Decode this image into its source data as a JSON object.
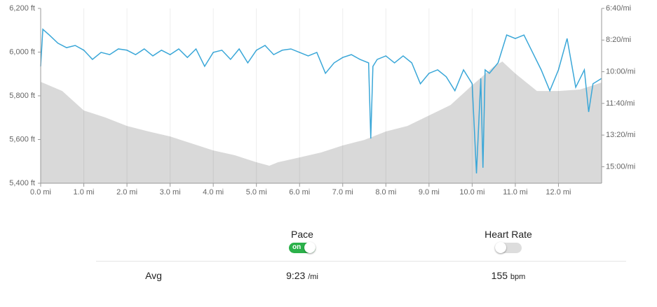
{
  "chart_data": {
    "type": "combo",
    "xlim": [
      0,
      13
    ],
    "xticks": [
      {
        "value": 0,
        "label": "0.0 mi"
      },
      {
        "value": 1,
        "label": "1.0 mi"
      },
      {
        "value": 2,
        "label": "2.0 mi"
      },
      {
        "value": 3,
        "label": "3.0 mi"
      },
      {
        "value": 4,
        "label": "4.0 mi"
      },
      {
        "value": 5,
        "label": "5.0 mi"
      },
      {
        "value": 6,
        "label": "6.0 mi"
      },
      {
        "value": 7,
        "label": "7.0 mi"
      },
      {
        "value": 8,
        "label": "8.0 mi"
      },
      {
        "value": 9,
        "label": "9.0 mi"
      },
      {
        "value": 10,
        "label": "10.0 mi"
      },
      {
        "value": 11,
        "label": "11.0 mi"
      },
      {
        "value": 12,
        "label": "12.0 mi"
      }
    ],
    "ylim": [
      5400,
      6200
    ],
    "yticks": [
      {
        "value": 5400,
        "label": "5,400 ft"
      },
      {
        "value": 5600,
        "label": "5,600 ft"
      },
      {
        "value": 5800,
        "label": "5,800 ft"
      },
      {
        "value": 6000,
        "label": "6,000 ft"
      },
      {
        "value": 6200,
        "label": "6,200 ft"
      }
    ],
    "y2lim": [
      952,
      400
    ],
    "y2ticks": [
      {
        "value": 400,
        "label": "6:40/mi"
      },
      {
        "value": 500,
        "label": "8:20/mi"
      },
      {
        "value": 600,
        "label": "10:00/mi"
      },
      {
        "value": 700,
        "label": "11:40/mi"
      },
      {
        "value": 800,
        "label": "13:20/mi"
      },
      {
        "value": 900,
        "label": "15:00/mi"
      }
    ],
    "grid": true,
    "series": [
      {
        "type": "area",
        "color": "#d9d9d9",
        "x": [
          0,
          0.5,
          1.0,
          1.5,
          2.0,
          2.5,
          3.0,
          3.5,
          4.0,
          4.5,
          5.0,
          5.3,
          5.5,
          6.0,
          6.5,
          7.0,
          7.5,
          8.0,
          8.5,
          9.0,
          9.5,
          10.0,
          10.5,
          10.7,
          11.0,
          11.5,
          12.0,
          12.5,
          13.0
        ],
        "values": [
          5864,
          5822,
          5733,
          5701,
          5662,
          5637,
          5614,
          5582,
          5550,
          5528,
          5496,
          5480,
          5496,
          5518,
          5541,
          5573,
          5598,
          5637,
          5662,
          5710,
          5758,
          5848,
          5934,
          5957,
          5902,
          5822,
          5822,
          5829,
          5861
        ]
      },
      {
        "type": "line",
        "axis": "y2",
        "color": "#3aa7d8",
        "x": [
          0,
          0.05,
          0.2,
          0.4,
          0.6,
          0.8,
          1.0,
          1.2,
          1.4,
          1.6,
          1.8,
          2.0,
          2.2,
          2.4,
          2.6,
          2.8,
          3.0,
          3.2,
          3.4,
          3.6,
          3.8,
          4.0,
          4.2,
          4.4,
          4.6,
          4.8,
          5.0,
          5.2,
          5.4,
          5.6,
          5.8,
          6.0,
          6.2,
          6.4,
          6.6,
          6.8,
          7.0,
          7.2,
          7.4,
          7.6,
          7.65,
          7.7,
          7.8,
          8.0,
          8.2,
          8.4,
          8.6,
          8.8,
          9.0,
          9.2,
          9.4,
          9.6,
          9.8,
          10.0,
          10.1,
          10.2,
          10.25,
          10.3,
          10.4,
          10.6,
          10.8,
          11.0,
          11.2,
          11.4,
          11.6,
          11.8,
          12.0,
          12.2,
          12.4,
          12.6,
          12.7,
          12.8,
          13.0
        ],
        "values": [
          583,
          466,
          484,
          510,
          524,
          517,
          532,
          561,
          539,
          546,
          528,
          532,
          546,
          528,
          550,
          532,
          546,
          528,
          555,
          528,
          583,
          539,
          532,
          561,
          528,
          572,
          532,
          517,
          546,
          532,
          528,
          539,
          550,
          539,
          605,
          572,
          555,
          546,
          561,
          572,
          811,
          583,
          561,
          550,
          572,
          550,
          572,
          638,
          605,
          594,
          616,
          660,
          594,
          638,
          921,
          621,
          903,
          594,
          605,
          572,
          484,
          495,
          484,
          539,
          594,
          660,
          594,
          495,
          649,
          594,
          727,
          638,
          621
        ]
      }
    ]
  },
  "stats": {
    "row_label": "Avg",
    "columns": [
      {
        "name": "Pace",
        "toggle": "on",
        "enabled": true,
        "avg": "9:23",
        "unit": "/mi"
      },
      {
        "name": "Heart Rate",
        "enabled": false,
        "avg": "155",
        "unit": "bpm"
      }
    ]
  }
}
